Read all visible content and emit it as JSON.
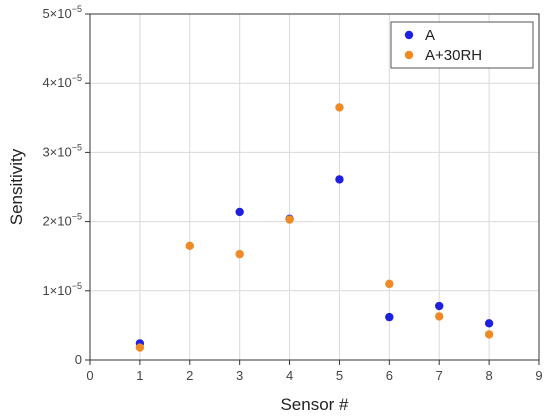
{
  "chart_data": {
    "type": "scatter",
    "xlabel": "Sensor #",
    "ylabel": "Sensitivity",
    "xlim": [
      0,
      9
    ],
    "ylim": [
      0,
      5e-05
    ],
    "x_ticks": [
      0,
      1,
      2,
      3,
      4,
      5,
      6,
      7,
      8,
      9
    ],
    "y_ticks": [
      {
        "value": 0,
        "mantissa": "0",
        "exponent": ""
      },
      {
        "value": 1e-05,
        "mantissa": "1×10",
        "exponent": "−5"
      },
      {
        "value": 2e-05,
        "mantissa": "2×10",
        "exponent": "−5"
      },
      {
        "value": 3e-05,
        "mantissa": "3×10",
        "exponent": "−5"
      },
      {
        "value": 4e-05,
        "mantissa": "4×10",
        "exponent": "−5"
      },
      {
        "value": 5e-05,
        "mantissa": "5×10",
        "exponent": "−5"
      }
    ],
    "grid": true,
    "legend_position": "top-right",
    "series": [
      {
        "name": "A",
        "color": "#1f1fe0",
        "points": [
          {
            "x": 1,
            "y": 2.4e-06
          },
          {
            "x": 3,
            "y": 2.14e-05
          },
          {
            "x": 4,
            "y": 2.04e-05
          },
          {
            "x": 5,
            "y": 2.61e-05
          },
          {
            "x": 6,
            "y": 6.2e-06
          },
          {
            "x": 7,
            "y": 7.8e-06
          },
          {
            "x": 8,
            "y": 5.3e-06
          }
        ]
      },
      {
        "name": "A+30RH",
        "color": "#f08a24",
        "points": [
          {
            "x": 1,
            "y": 1.8e-06
          },
          {
            "x": 2,
            "y": 1.65e-05
          },
          {
            "x": 3,
            "y": 1.53e-05
          },
          {
            "x": 4,
            "y": 2.03e-05
          },
          {
            "x": 5,
            "y": 3.65e-05
          },
          {
            "x": 6,
            "y": 1.1e-05
          },
          {
            "x": 7,
            "y": 6.3e-06
          },
          {
            "x": 8,
            "y": 3.7e-06
          }
        ]
      }
    ]
  }
}
